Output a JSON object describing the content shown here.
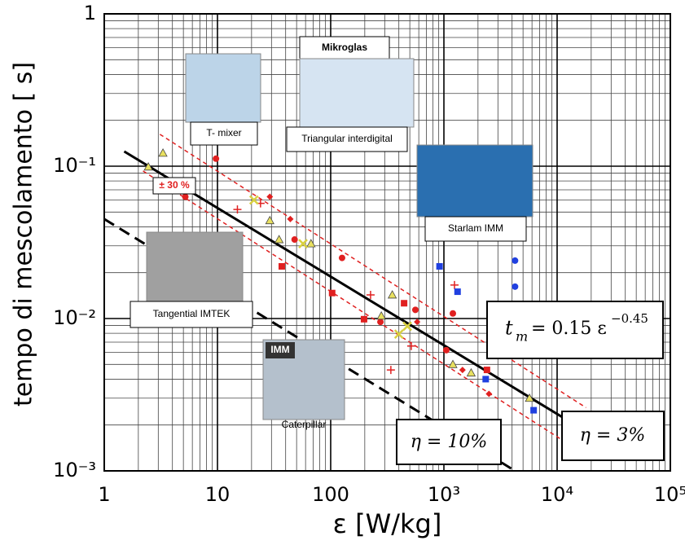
{
  "chart_data": {
    "type": "scatter",
    "x_label": "ε [W/kg]",
    "y_label": "tempo di mescolamento [ s]",
    "log_x": true,
    "log_y": true,
    "grid": true,
    "xlim": [
      1,
      100000
    ],
    "ylim": [
      0.001,
      1
    ],
    "xticks": [
      1,
      10,
      100,
      {
        "value": 1000,
        "label": "10³"
      },
      {
        "value": 10000,
        "label": "10⁴"
      },
      {
        "value": 100000,
        "label": "10⁵"
      }
    ],
    "yticks": [
      {
        "value": 0.001,
        "label": "10⁻³"
      },
      {
        "value": 0.01,
        "label": "10⁻²"
      },
      {
        "value": 0.1,
        "label": "10⁻¹"
      },
      1
    ],
    "series": [
      {
        "kind": "line",
        "color": "#000000",
        "dash": "solid",
        "x": [
          1.5,
          45000
        ],
        "values": [
          0.125,
          0.0012
        ]
      },
      {
        "kind": "line",
        "color": "#000000",
        "dash": "dashed",
        "x": [
          1,
          4250
        ],
        "values": [
          0.045,
          0.001
        ]
      },
      {
        "kind": "line",
        "color": "#e02020",
        "dash": "dashed",
        "x": [
          3.1,
          18000
        ],
        "values": [
          0.162,
          0.0026
        ]
      },
      {
        "kind": "line",
        "color": "#e02020",
        "dash": "dashed",
        "x": [
          2.2,
          11000
        ],
        "values": [
          0.093,
          0.0016
        ]
      },
      {
        "kind": "scatter",
        "marker": "circle",
        "color": "#e02020",
        "x": [
          9.7,
          5.2,
          48,
          126,
          275,
          560,
          1200,
          1050
        ],
        "values": [
          0.112,
          0.063,
          0.033,
          0.025,
          0.0095,
          0.0114,
          0.0108,
          0.0062
        ]
      },
      {
        "kind": "scatter",
        "marker": "square",
        "color": "#e02020",
        "x": [
          37,
          103,
          197,
          445,
          2400
        ],
        "values": [
          0.022,
          0.0147,
          0.0099,
          0.0126,
          0.0046
        ]
      },
      {
        "kind": "scatter",
        "marker": "diamond",
        "color": "#e02020",
        "x": [
          44,
          29,
          580,
          1460,
          2500
        ],
        "values": [
          0.045,
          0.063,
          0.0095,
          0.0046,
          0.0032
        ]
      },
      {
        "kind": "scatter",
        "marker": "plus",
        "color": "#e02020",
        "x": [
          15,
          24,
          225,
          1240,
          515,
          340
        ],
        "values": [
          0.052,
          0.057,
          0.0143,
          0.0166,
          0.0066,
          0.0046
        ]
      },
      {
        "kind": "scatter",
        "marker": "triangle",
        "color": "#e8e060",
        "x": [
          2.45,
          3.3,
          29,
          35,
          67,
          280,
          350,
          1200,
          1740,
          5700
        ],
        "values": [
          0.099,
          0.122,
          0.044,
          0.033,
          0.031,
          0.0104,
          0.0143,
          0.005,
          0.0044,
          0.003
        ]
      },
      {
        "kind": "scatter",
        "marker": "cross",
        "color": "#d8d040",
        "x": [
          21,
          57,
          400,
          475
        ],
        "values": [
          0.06,
          0.031,
          0.0079,
          0.0089
        ]
      },
      {
        "kind": "scatter",
        "marker": "square",
        "color": "#2040e0",
        "x": [
          915,
          1320,
          2340,
          6200
        ],
        "values": [
          0.022,
          0.015,
          0.004,
          0.0025
        ]
      },
      {
        "kind": "scatter",
        "marker": "circle",
        "color": "#2040e0",
        "x": [
          4250,
          4250
        ],
        "values": [
          0.024,
          0.0162
        ]
      }
    ],
    "annotations": {
      "band": "± 30 %",
      "fit_t": "t",
      "fit_sub": "m",
      "fit_eq": "= 0.15 ε",
      "fit_exp": "−0.45",
      "eta10": "η = 10%",
      "eta3": "η = 3%",
      "t_mixer": "T- mixer",
      "mikroglas": "Mikroglas",
      "triangular": "Triangular interdigital",
      "starlam": "Starlam IMM",
      "tangential": "Tangential IMTEK",
      "imm": "IMM",
      "caterpillar": "Caterpillar"
    }
  }
}
